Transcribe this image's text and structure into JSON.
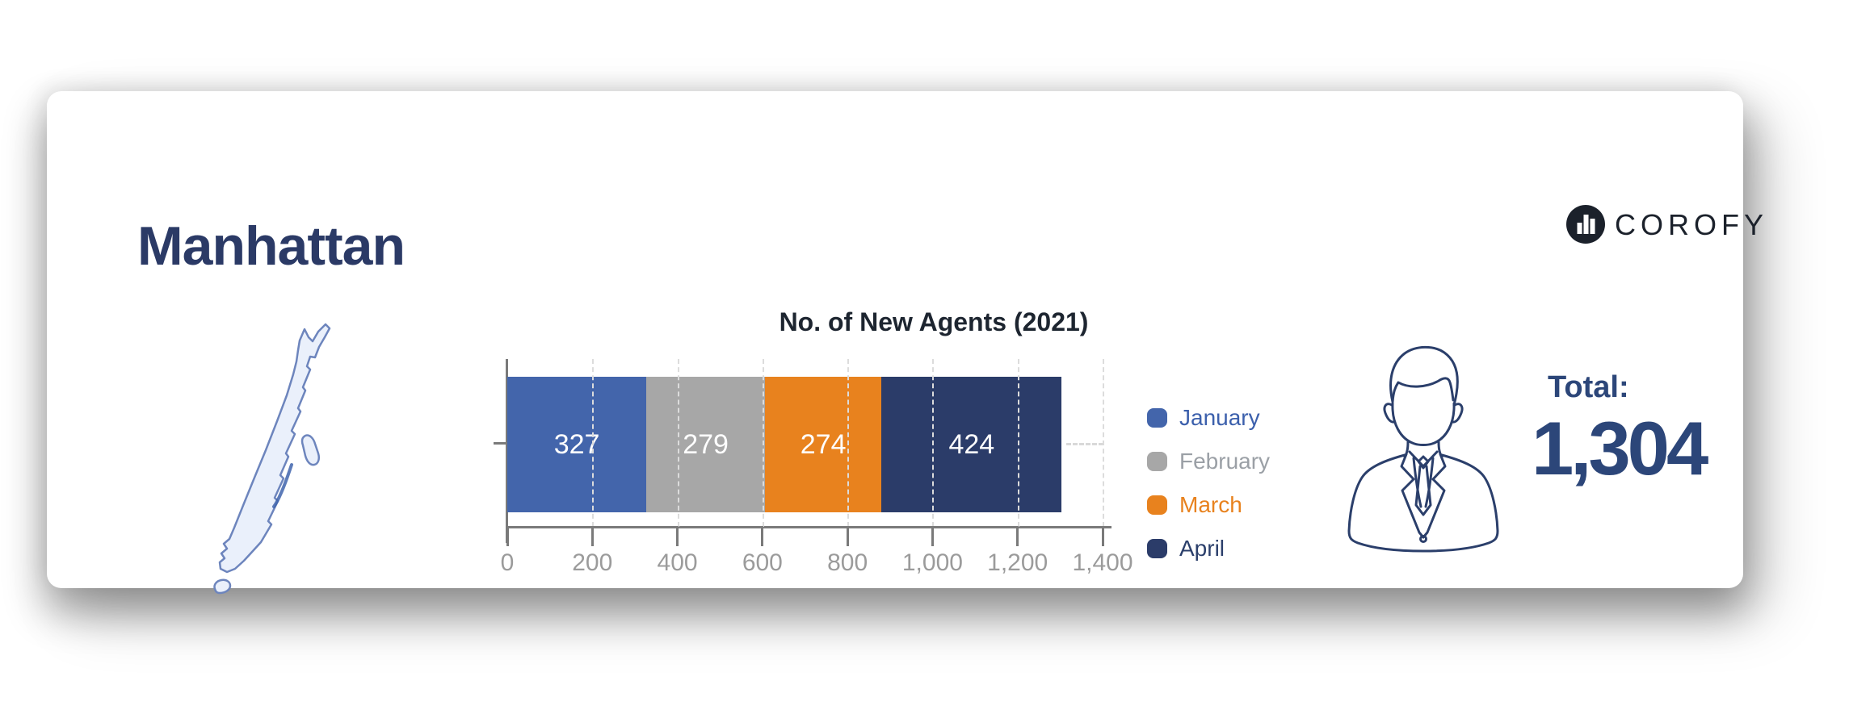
{
  "header": {
    "region_title": "Manhattan",
    "brand": "COROFY"
  },
  "chart_data": {
    "type": "bar",
    "orientation": "horizontal",
    "stacked": true,
    "title": "No. of New Agents (2021)",
    "categories": [
      "Manhattan"
    ],
    "series": [
      {
        "name": "January",
        "values": [
          327
        ],
        "color": "#4365ab",
        "label_color": "#3c60ac"
      },
      {
        "name": "February",
        "values": [
          279
        ],
        "color": "#a7a7a7",
        "label_color": "#9ba0a6"
      },
      {
        "name": "March",
        "values": [
          274
        ],
        "color": "#e8821e",
        "label_color": "#e8821e"
      },
      {
        "name": "April",
        "values": [
          424
        ],
        "color": "#2b3c69",
        "label_color": "#2b3f6b"
      }
    ],
    "value_labels": [
      "327",
      "279",
      "274",
      "424"
    ],
    "value_label_color": "#ffffff",
    "xlim": [
      0,
      1400
    ],
    "xticks": [
      0,
      200,
      400,
      600,
      800,
      1000,
      1200,
      1400
    ],
    "xtick_labels": [
      "0",
      "200",
      "400",
      "600",
      "800",
      "1,000",
      "1,200",
      "1,400"
    ],
    "grid": "dashed vertical gridlines, dashed category line right of bar",
    "legend_position": "right of plot",
    "axis_color": "#7a7a7a",
    "grid_color": "#dcdcdc",
    "tick_label_color": "#9b9b9b",
    "title_color": "#1d2530"
  },
  "total": {
    "label": "Total:",
    "value": "1,304"
  },
  "icons": {
    "map": "manhattan-borough-map",
    "person": "business-person-outline",
    "brand_mark": "corofy-circle-building-bars"
  },
  "colors": {
    "region_title": "#2b3a66",
    "total_text": "#2c4679",
    "map_fill": "#eaf0fb",
    "map_stroke": "#6d85bd",
    "person_stroke": "#2b3f6b",
    "brand": "#1b212b",
    "card_background": "#ffffff"
  }
}
